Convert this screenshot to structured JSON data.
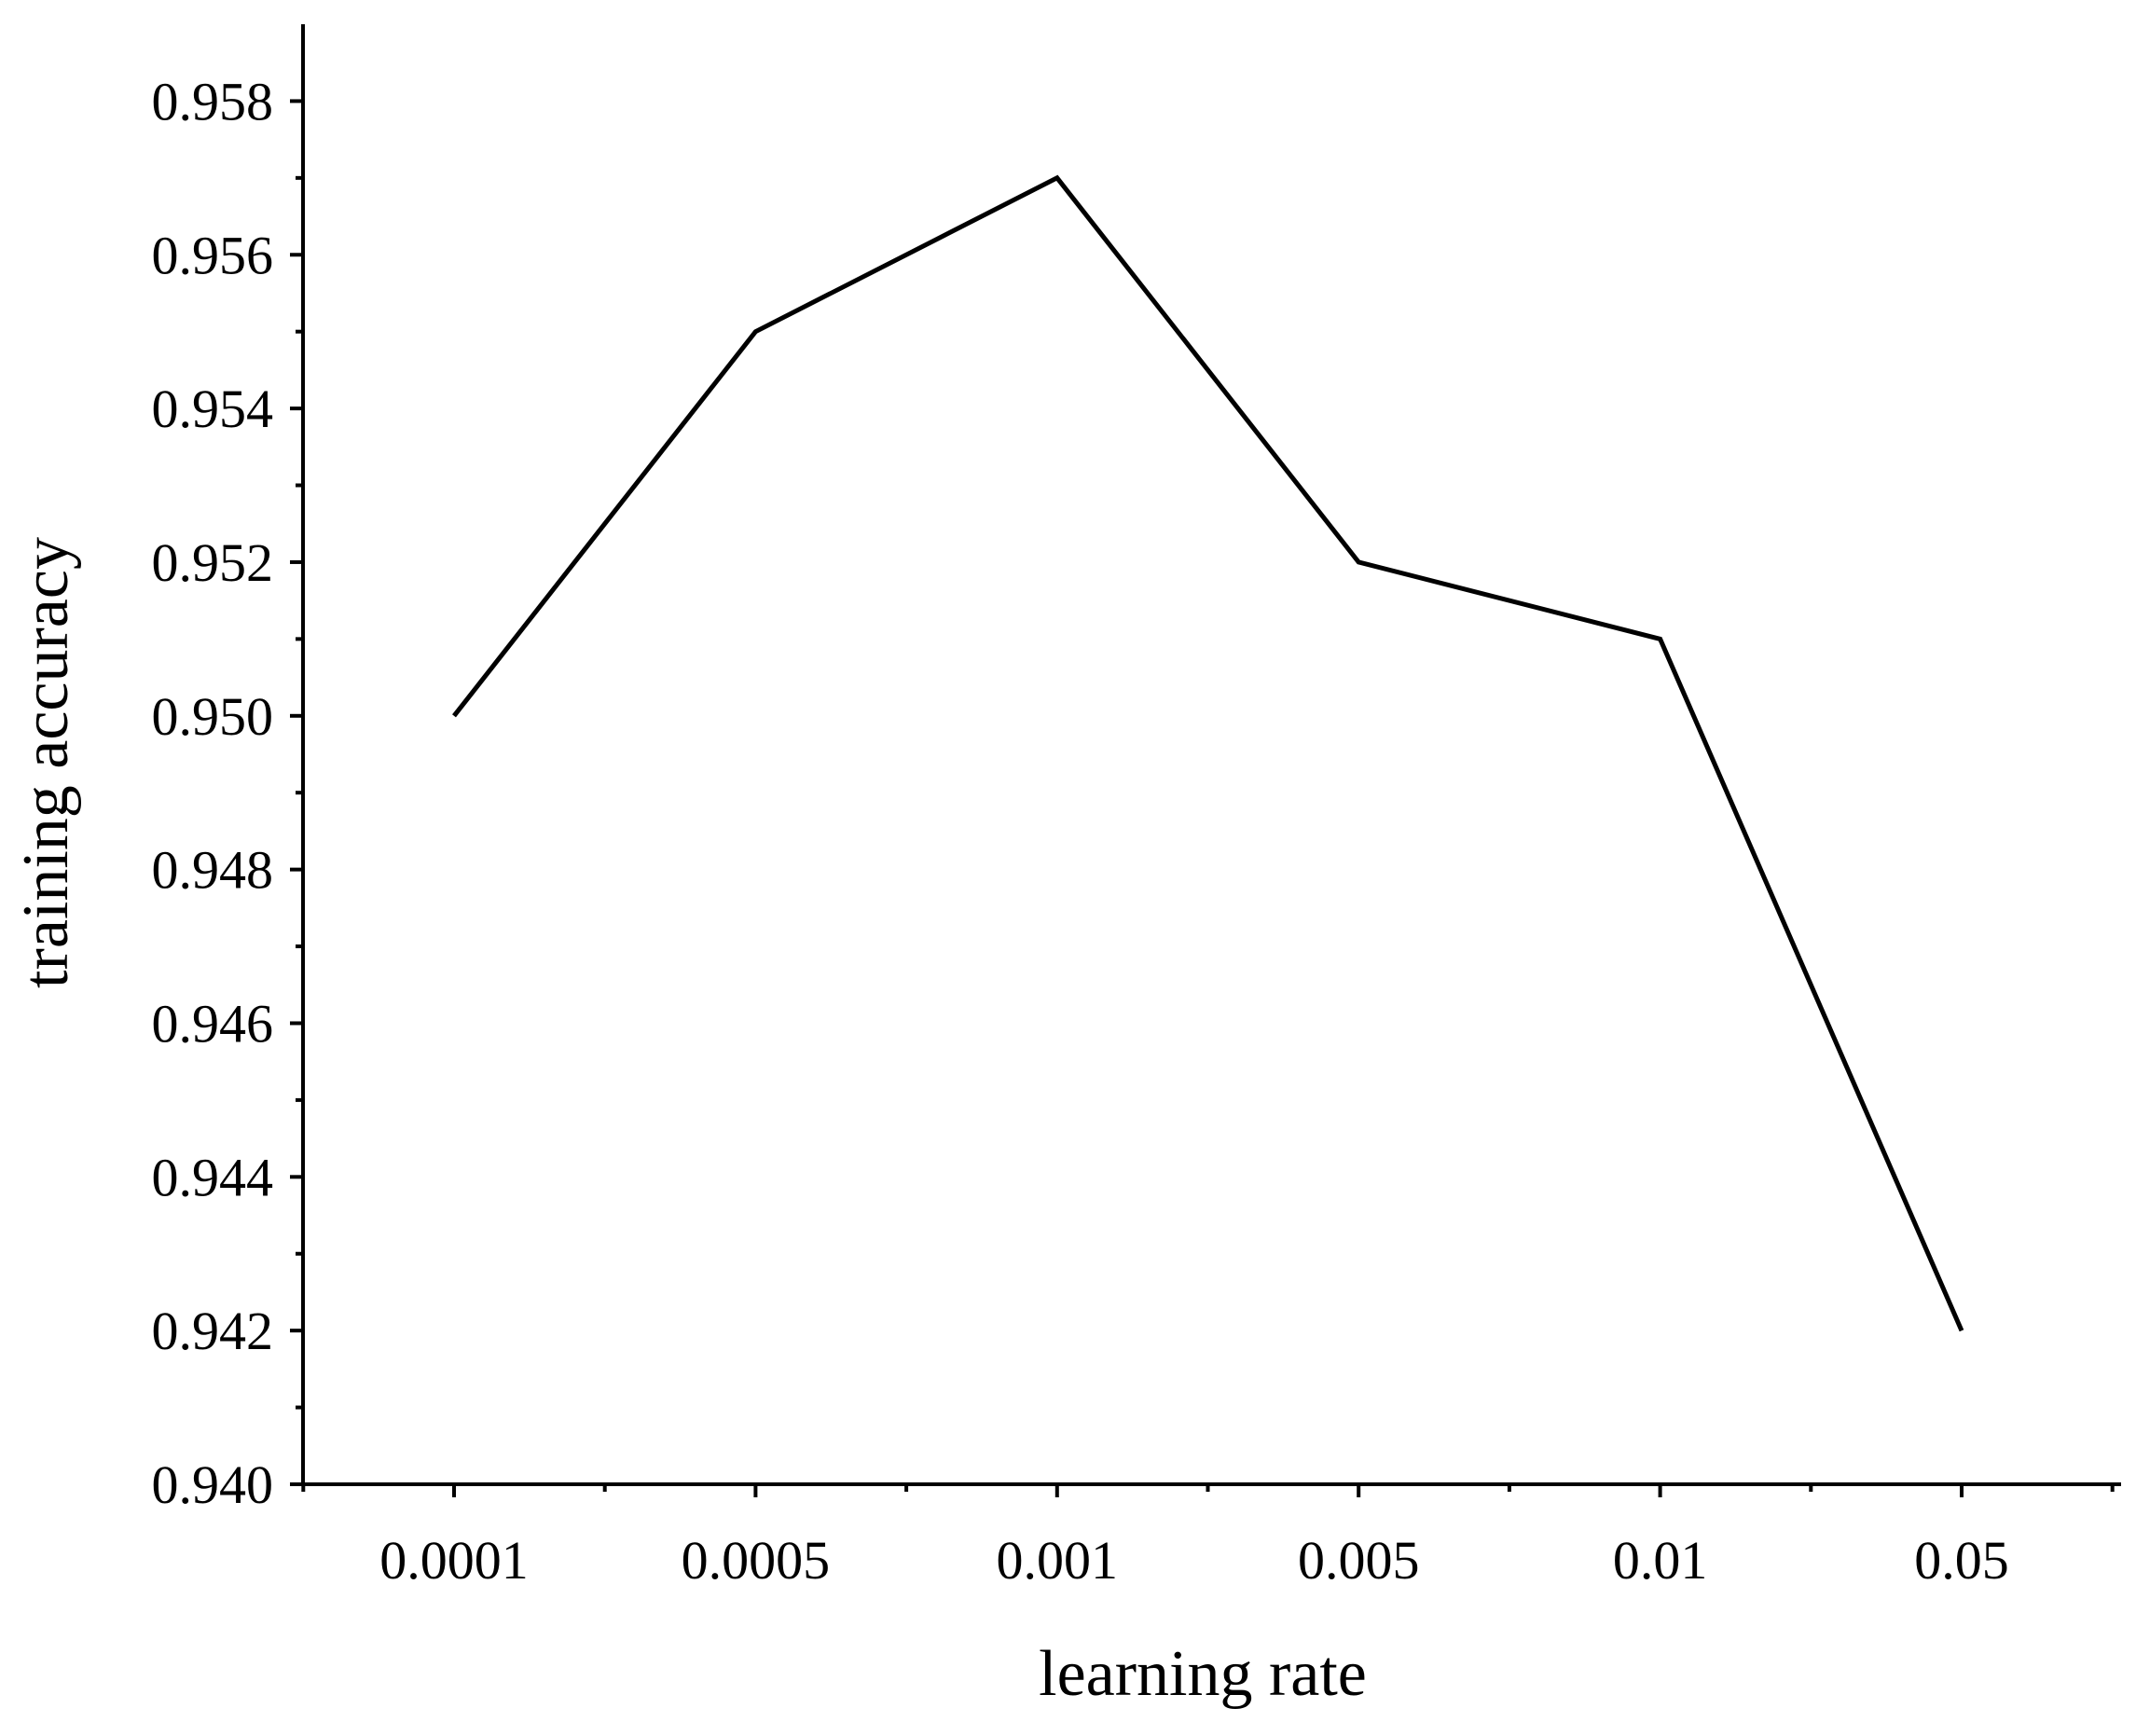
{
  "chart_data": {
    "type": "line",
    "title": "",
    "xlabel": "learning rate",
    "ylabel": "training accuracy",
    "categories": [
      "0.0001",
      "0.0005",
      "0.001",
      "0.005",
      "0.01",
      "0.05"
    ],
    "series": [
      {
        "values": [
          0.95,
          0.955,
          0.957,
          0.952,
          0.951,
          0.942
        ]
      }
    ],
    "ylim": [
      0.94,
      0.959
    ],
    "yticks": [
      "0.940",
      "0.942",
      "0.944",
      "0.946",
      "0.948",
      "0.950",
      "0.952",
      "0.954",
      "0.956",
      "0.958"
    ],
    "y_minor_step": 0.001,
    "grid": false,
    "legend": "none",
    "line_color": "#000000"
  }
}
